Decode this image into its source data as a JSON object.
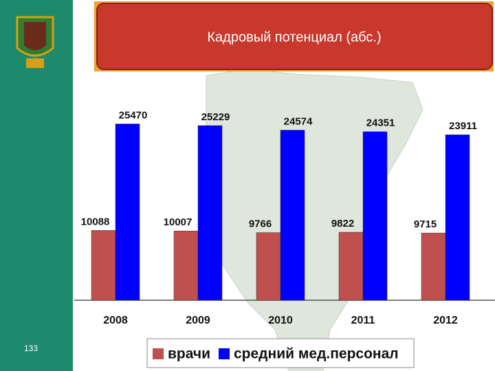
{
  "page_number": "133",
  "chart_data": {
    "type": "bar",
    "title": "Кадровый потенциал (абс.)",
    "categories": [
      "2008",
      "2009",
      "2010",
      "2011",
      "2012"
    ],
    "series": [
      {
        "name": "врачи",
        "color": "#c0504d",
        "values": [
          10088,
          10007,
          9766,
          9822,
          9715
        ]
      },
      {
        "name": "средний мед.персонал",
        "color": "#0000ff",
        "values": [
          25470,
          25229,
          24574,
          24351,
          23911
        ]
      }
    ],
    "ylim": [
      0,
      27000
    ]
  }
}
